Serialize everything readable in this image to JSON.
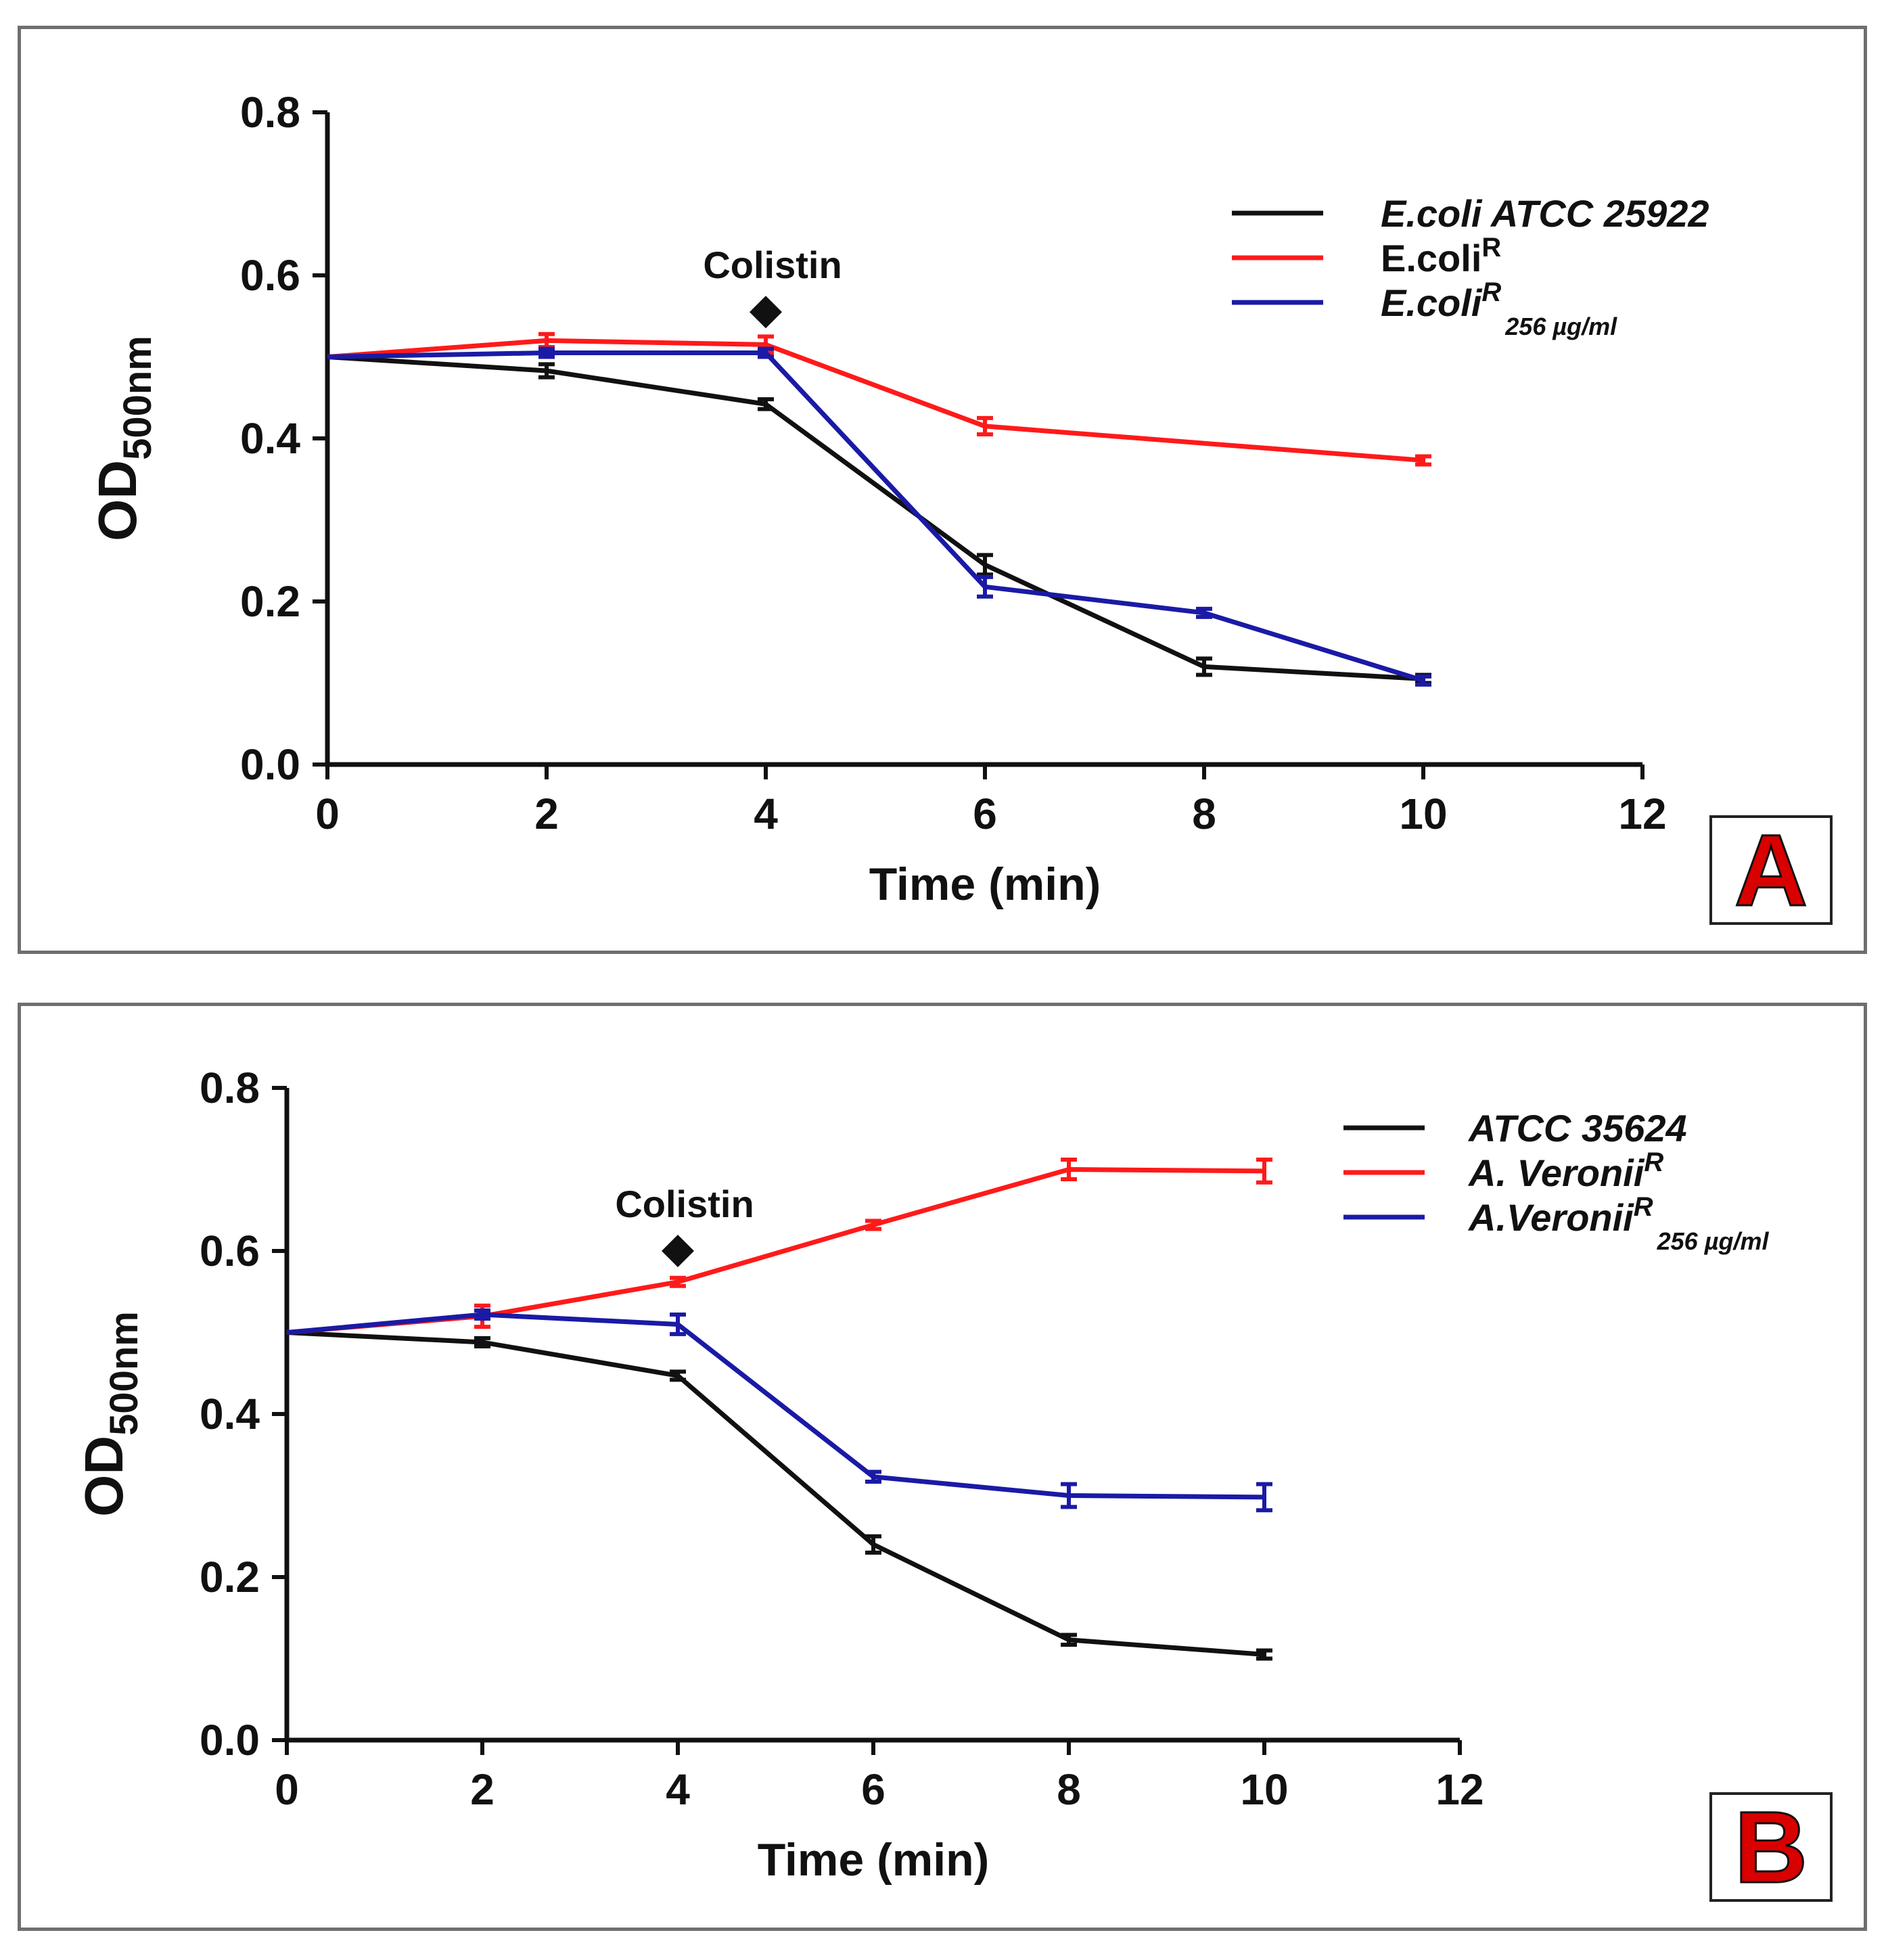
{
  "colors": {
    "black": "#111111",
    "red": "#ff1a1a",
    "blue": "#1a1aa6",
    "letter": "#d90000",
    "frame": "#6f6f6f"
  },
  "chart_data": [
    {
      "type": "line",
      "panel_label": "A",
      "xlabel": "Time (min)",
      "ylabel_main": "OD",
      "ylabel_sub": "500nm",
      "xlim": [
        0,
        12
      ],
      "ylim": [
        0,
        0.8
      ],
      "xticks": [
        "0",
        "2",
        "4",
        "6",
        "8",
        "10",
        "12"
      ],
      "yticks": [
        "0.0",
        "0.2",
        "0.4",
        "0.6",
        "0.8"
      ],
      "annotation": {
        "text": "Colistin",
        "x": 4,
        "y": 0.555
      },
      "legend": {
        "placement": "top-right"
      },
      "series": [
        {
          "name": "E.coli ATCC 25922",
          "name_main": "E.coli ATCC 25922",
          "name_sup": "",
          "name_sub": "",
          "italic": true,
          "color": "black",
          "x": [
            0,
            2,
            4,
            6,
            8,
            10
          ],
          "y": [
            0.5,
            0.483,
            0.442,
            0.245,
            0.12,
            0.105
          ],
          "err": [
            0,
            0.008,
            0.006,
            0.012,
            0.01,
            0.004
          ]
        },
        {
          "name": "E.coliR",
          "name_main": "E.coli",
          "name_sup": "R",
          "name_sub": "",
          "italic": false,
          "color": "red",
          "x": [
            0,
            2,
            4,
            6,
            10
          ],
          "y": [
            0.5,
            0.52,
            0.515,
            0.415,
            0.373
          ],
          "err": [
            0,
            0.008,
            0.01,
            0.01,
            0.005
          ]
        },
        {
          "name": "E.coliR 256 µg/ml",
          "name_main": "E.coli",
          "name_sup": "R",
          "name_sub": "256 µg/ml",
          "italic": true,
          "color": "blue",
          "x": [
            0,
            2,
            4,
            6,
            8,
            10
          ],
          "y": [
            0.5,
            0.505,
            0.505,
            0.218,
            0.186,
            0.103
          ],
          "err": [
            0,
            0.005,
            0.004,
            0.012,
            0.004,
            0.003
          ]
        }
      ]
    },
    {
      "type": "line",
      "panel_label": "B",
      "xlabel": "Time (min)",
      "ylabel_main": "OD",
      "ylabel_sub": "500nm",
      "xlim": [
        0,
        12
      ],
      "ylim": [
        0,
        0.8
      ],
      "xticks": [
        "0",
        "2",
        "4",
        "6",
        "8",
        "10",
        "12"
      ],
      "yticks": [
        "0.0",
        "0.2",
        "0.4",
        "0.6",
        "0.8"
      ],
      "annotation": {
        "text": "Colistin",
        "x": 4,
        "y": 0.6
      },
      "legend": {
        "placement": "top-right"
      },
      "series": [
        {
          "name": "ATCC 35624",
          "name_main": "ATCC 35624",
          "name_sup": "",
          "name_sub": "",
          "italic": true,
          "color": "black",
          "x": [
            0,
            2,
            4,
            6,
            8,
            10
          ],
          "y": [
            0.5,
            0.488,
            0.447,
            0.24,
            0.123,
            0.105
          ],
          "err": [
            0,
            0.005,
            0.004,
            0.01,
            0.006,
            0.002
          ]
        },
        {
          "name": "A. VeroniiR",
          "name_main": "A. Veronii",
          "name_sup": "R",
          "name_sub": "",
          "italic": true,
          "color": "red",
          "x": [
            0,
            2,
            4,
            6,
            8,
            10
          ],
          "y": [
            0.5,
            0.52,
            0.562,
            0.632,
            0.7,
            0.698
          ],
          "err": [
            0,
            0.013,
            0.004,
            0.004,
            0.012,
            0.014
          ]
        },
        {
          "name": "A.VeroniiR 256 µg/ml",
          "name_main": "A.Veronii",
          "name_sup": "R",
          "name_sub": "256 µg/ml",
          "italic": true,
          "color": "blue",
          "x": [
            0,
            2,
            4,
            6,
            8,
            10
          ],
          "y": [
            0.5,
            0.522,
            0.51,
            0.323,
            0.3,
            0.298
          ],
          "err": [
            0,
            0.005,
            0.012,
            0.006,
            0.014,
            0.016
          ]
        }
      ]
    }
  ]
}
